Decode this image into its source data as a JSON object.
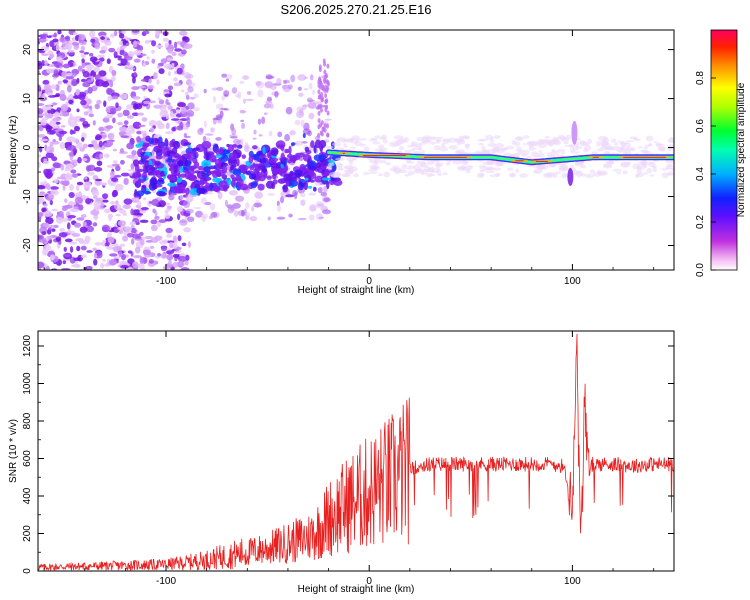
{
  "figure_title": "S206.2025.270.21.25.E16",
  "chart_data": [
    {
      "type": "heatmap",
      "title": "S206.2025.270.21.25.E16",
      "xlabel": "Height of straight line (km)",
      "ylabel": "Frequency (Hz)",
      "xlim": [
        -163,
        150
      ],
      "ylim": [
        -25,
        24
      ],
      "xticks": [
        -100,
        0,
        100
      ],
      "yticks": [
        -20,
        -10,
        0,
        10,
        20
      ],
      "colorbar": {
        "label": "Normalized spectral amplitude",
        "range": [
          0,
          1
        ],
        "ticks": [
          "0.0",
          "0.2",
          "0.4",
          "0.6",
          "0.8"
        ],
        "tick_values": [
          0.0,
          0.2,
          0.4,
          0.6,
          0.8
        ],
        "colormap": [
          "#ffffff",
          "#e040e0",
          "#9010ff",
          "#2020ff",
          "#00d0ff",
          "#00ff80",
          "#80ff00",
          "#ffff00",
          "#ffa000",
          "#ff2000",
          "#ff0060"
        ]
      },
      "ridge_frequency_hz": [
        {
          "height_km": -20,
          "freq_hz": -1.0
        },
        {
          "height_km": 0,
          "freq_hz": -1.5
        },
        {
          "height_km": 30,
          "freq_hz": -2.0
        },
        {
          "height_km": 60,
          "freq_hz": -2.0
        },
        {
          "height_km": 80,
          "freq_hz": -3.0
        },
        {
          "height_km": 95,
          "freq_hz": -2.5
        },
        {
          "height_km": 110,
          "freq_hz": -2.0
        },
        {
          "height_km": 150,
          "freq_hz": -2.0
        }
      ]
    },
    {
      "type": "line",
      "xlabel": "Height of straight line (km)",
      "ylabel": "SNR (10 * v/v)",
      "xlim": [
        -163,
        150
      ],
      "ylim": [
        0,
        1280
      ],
      "xticks": [
        -100,
        0,
        100
      ],
      "yticks": [
        0,
        200,
        400,
        600,
        800,
        1000,
        1200
      ],
      "line_color": "#e82020",
      "series": [
        {
          "name": "SNR",
          "x": [
            -163,
            -140,
            -120,
            -100,
            -90,
            -80,
            -70,
            -60,
            -50,
            -40,
            -30,
            -25,
            -20,
            -15,
            -10,
            -5,
            0,
            5,
            10,
            15,
            20,
            25,
            30,
            40,
            50,
            60,
            70,
            80,
            90,
            95,
            98,
            100,
            102,
            103,
            104,
            105,
            106,
            107,
            108,
            110,
            115,
            120,
            130,
            140,
            150
          ],
          "y": [
            20,
            25,
            30,
            35,
            45,
            60,
            80,
            100,
            120,
            150,
            180,
            220,
            280,
            320,
            360,
            390,
            420,
            450,
            480,
            510,
            540,
            560,
            570,
            570,
            570,
            570,
            570,
            570,
            570,
            560,
            480,
            300,
            1280,
            700,
            150,
            400,
            1020,
            650,
            520,
            570,
            570,
            570,
            560,
            570,
            570
          ]
        }
      ]
    }
  ]
}
